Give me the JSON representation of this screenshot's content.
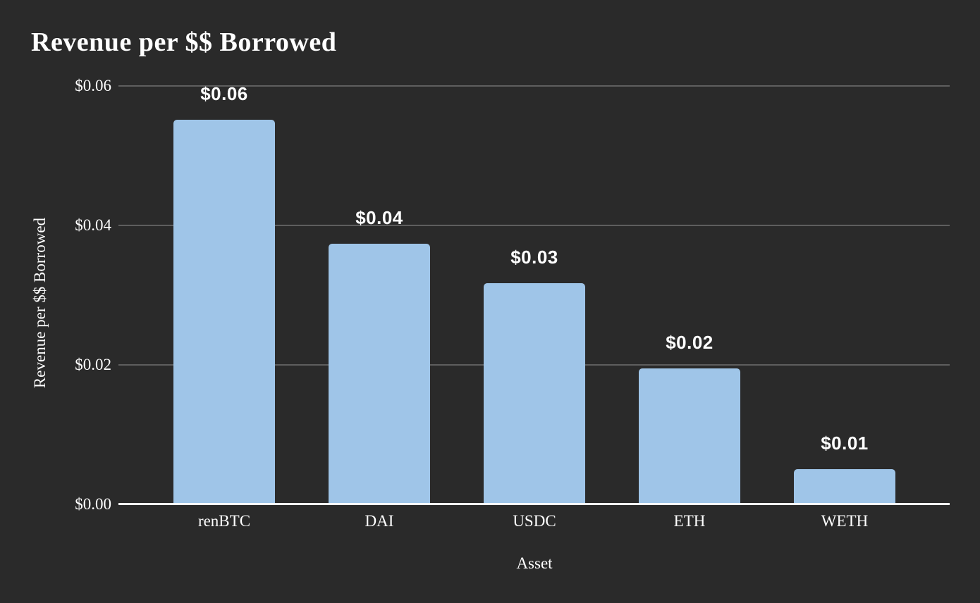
{
  "chart_data": {
    "type": "bar",
    "title": "Revenue per $$ Borrowed",
    "xlabel": "Asset",
    "ylabel": "Revenue per $$ Borrowed",
    "categories": [
      "renBTC",
      "DAI",
      "USDC",
      "ETH",
      "WETH"
    ],
    "values": [
      0.0552,
      0.0374,
      0.0317,
      0.0195,
      0.0051
    ],
    "bar_labels": [
      "$0.06",
      "$0.04",
      "$0.03",
      "$0.02",
      "$0.01"
    ],
    "y_ticks": [
      {
        "value": 0.06,
        "label": "$0.06"
      },
      {
        "value": 0.04,
        "label": "$0.04"
      },
      {
        "value": 0.02,
        "label": "$0.02"
      },
      {
        "value": 0.0,
        "label": "$0.00"
      }
    ],
    "ylim": [
      0,
      0.06
    ],
    "grid": true,
    "legend": "none",
    "colors": {
      "background": "#2a2a2a",
      "bar": "#9fc5e8",
      "gridline": "#5e5e5e",
      "axis_line": "#ffffff",
      "text": "#ffffff"
    }
  }
}
